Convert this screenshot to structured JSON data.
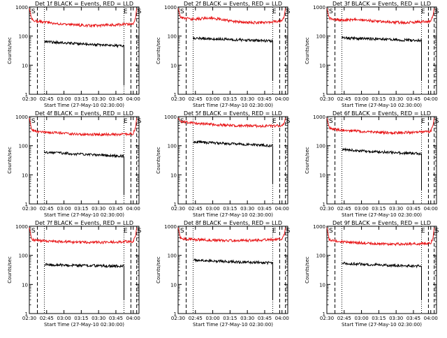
{
  "figure": {
    "xlabel": "Start Time (27-May-10 02:30:00)",
    "ylabel": "Counts/sec"
  },
  "colors": {
    "events": "#000000",
    "lld": "#e8181a",
    "axis": "#000000",
    "background": "#ffffff"
  },
  "chart_data": [
    {
      "type": "line",
      "yscale": "log",
      "ylim": [
        1,
        1000
      ],
      "xlim": [
        "02:30",
        "04:05"
      ],
      "title": "Det 1f BLACK = Events, RED = LLD",
      "x_ticks": [
        "02:30",
        "02:45",
        "03:00",
        "03:15",
        "03:30",
        "03:45",
        "04:00"
      ],
      "y_ticks": [
        "1",
        "10",
        "100",
        "1000"
      ],
      "markers": [
        {
          "label": "S",
          "time": "02:30"
        },
        {
          "label": "E",
          "time": "03:54"
        },
        {
          "label": "S",
          "time": "04:03"
        }
      ],
      "dashed_lines": [
        "02:37",
        "03:58",
        "04:03"
      ],
      "dotted_lines": [
        "02:43",
        "03:52"
      ],
      "series": [
        {
          "role": "lld",
          "x": [
            "02:30",
            "02:32",
            "02:35",
            "02:40",
            "02:45",
            "02:50",
            "03:00",
            "03:10",
            "03:20",
            "03:30",
            "03:40",
            "03:50",
            "03:55",
            "04:00",
            "04:02",
            "04:03"
          ],
          "y": [
            900,
            380,
            330,
            310,
            300,
            280,
            250,
            240,
            230,
            230,
            240,
            250,
            255,
            260,
            400,
            900
          ]
        },
        {
          "role": "events",
          "x": [
            "02:43",
            "02:50",
            "03:00",
            "03:10",
            "03:20",
            "03:30",
            "03:40",
            "03:50",
            "03:52",
            "03:52"
          ],
          "y": [
            65,
            62,
            58,
            55,
            52,
            50,
            48,
            46,
            45,
            2
          ]
        }
      ]
    },
    {
      "type": "line",
      "yscale": "log",
      "ylim": [
        1,
        1000
      ],
      "xlim": [
        "02:30",
        "04:05"
      ],
      "title": "Det 2f BLACK = Events, RED = LLD",
      "x_ticks": [
        "02:30",
        "02:45",
        "03:00",
        "03:15",
        "03:30",
        "03:45",
        "04:00"
      ],
      "y_ticks": [
        "1",
        "10",
        "100",
        "1000"
      ],
      "markers": [
        {
          "label": "S",
          "time": "02:30"
        },
        {
          "label": "E",
          "time": "03:54"
        },
        {
          "label": "S",
          "time": "04:03"
        }
      ],
      "dashed_lines": [
        "02:37",
        "03:58",
        "04:03"
      ],
      "dotted_lines": [
        "02:43",
        "03:52"
      ],
      "series": [
        {
          "role": "lld",
          "x": [
            "02:30",
            "02:32",
            "02:35",
            "02:40",
            "02:45",
            "02:55",
            "03:05",
            "03:15",
            "03:25",
            "03:35",
            "03:45",
            "03:52",
            "04:00",
            "04:02",
            "04:03"
          ],
          "y": [
            900,
            450,
            400,
            390,
            380,
            420,
            390,
            330,
            300,
            290,
            300,
            310,
            330,
            500,
            900
          ]
        },
        {
          "role": "events",
          "x": [
            "02:43",
            "02:50",
            "03:00",
            "03:10",
            "03:20",
            "03:30",
            "03:40",
            "03:50",
            "03:52",
            "03:52"
          ],
          "y": [
            85,
            82,
            80,
            78,
            75,
            72,
            70,
            68,
            66,
            3
          ]
        }
      ]
    },
    {
      "type": "line",
      "yscale": "log",
      "ylim": [
        1,
        1000
      ],
      "xlim": [
        "02:30",
        "04:05"
      ],
      "title": "Det 3f BLACK = Events, RED = LLD",
      "x_ticks": [
        "02:30",
        "02:45",
        "03:00",
        "03:15",
        "03:30",
        "03:45",
        "04:00"
      ],
      "y_ticks": [
        "1",
        "10",
        "100",
        "1000"
      ],
      "markers": [
        {
          "label": "S",
          "time": "02:30"
        },
        {
          "label": "E",
          "time": "03:54"
        },
        {
          "label": "S",
          "time": "04:03"
        }
      ],
      "dashed_lines": [
        "02:37",
        "03:58",
        "04:03"
      ],
      "dotted_lines": [
        "02:43",
        "03:52"
      ],
      "series": [
        {
          "role": "lld",
          "x": [
            "02:30",
            "02:32",
            "02:35",
            "02:40",
            "02:45",
            "02:55",
            "03:05",
            "03:15",
            "03:25",
            "03:35",
            "03:45",
            "03:52",
            "04:00",
            "04:02",
            "04:03"
          ],
          "y": [
            900,
            420,
            380,
            360,
            350,
            370,
            350,
            320,
            300,
            290,
            300,
            310,
            320,
            500,
            900
          ]
        },
        {
          "role": "events",
          "x": [
            "02:43",
            "02:50",
            "03:00",
            "03:10",
            "03:20",
            "03:30",
            "03:40",
            "03:50",
            "03:52",
            "03:52"
          ],
          "y": [
            90,
            85,
            82,
            80,
            78,
            75,
            72,
            70,
            70,
            3
          ]
        }
      ]
    },
    {
      "type": "line",
      "yscale": "log",
      "ylim": [
        1,
        1000
      ],
      "xlim": [
        "02:30",
        "04:05"
      ],
      "title": "Det 4f BLACK = Events, RED = LLD",
      "x_ticks": [
        "02:30",
        "02:45",
        "03:00",
        "03:15",
        "03:30",
        "03:45",
        "04:00"
      ],
      "y_ticks": [
        "1",
        "10",
        "100",
        "1000"
      ],
      "markers": [
        {
          "label": "S",
          "time": "02:30"
        },
        {
          "label": "E",
          "time": "03:54"
        },
        {
          "label": "S",
          "time": "04:03"
        }
      ],
      "dashed_lines": [
        "02:37",
        "03:58",
        "04:03"
      ],
      "dotted_lines": [
        "02:43",
        "03:52"
      ],
      "series": [
        {
          "role": "lld",
          "x": [
            "02:30",
            "02:32",
            "02:35",
            "02:40",
            "02:45",
            "02:55",
            "03:05",
            "03:15",
            "03:25",
            "03:35",
            "03:45",
            "03:52",
            "04:00",
            "04:02",
            "04:03"
          ],
          "y": [
            900,
            350,
            320,
            300,
            290,
            280,
            260,
            250,
            245,
            240,
            245,
            250,
            260,
            400,
            900
          ]
        },
        {
          "role": "events",
          "x": [
            "02:43",
            "02:50",
            "03:00",
            "03:10",
            "03:20",
            "03:30",
            "03:40",
            "03:50",
            "03:52",
            "03:52"
          ],
          "y": [
            60,
            58,
            55,
            52,
            50,
            48,
            46,
            44,
            43,
            2
          ]
        }
      ]
    },
    {
      "type": "line",
      "yscale": "log",
      "ylim": [
        1,
        1000
      ],
      "xlim": [
        "02:30",
        "04:05"
      ],
      "title": "Det 5f BLACK = Events, RED = LLD",
      "x_ticks": [
        "02:30",
        "02:45",
        "03:00",
        "03:15",
        "03:30",
        "03:45",
        "04:00"
      ],
      "y_ticks": [
        "1",
        "10",
        "100",
        "1000"
      ],
      "markers": [
        {
          "label": "S",
          "time": "02:30"
        },
        {
          "label": "E",
          "time": "03:54"
        },
        {
          "label": "S",
          "time": "04:03"
        }
      ],
      "dashed_lines": [
        "02:37",
        "03:58",
        "04:03"
      ],
      "dotted_lines": [
        "02:43",
        "03:52"
      ],
      "series": [
        {
          "role": "lld",
          "x": [
            "02:30",
            "02:32",
            "02:35",
            "02:40",
            "02:45",
            "02:55",
            "03:05",
            "03:15",
            "03:25",
            "03:35",
            "03:45",
            "03:52",
            "04:00",
            "04:02",
            "04:03"
          ],
          "y": [
            900,
            700,
            650,
            620,
            600,
            560,
            520,
            500,
            490,
            480,
            470,
            480,
            490,
            600,
            900
          ]
        },
        {
          "role": "events",
          "x": [
            "02:43",
            "02:50",
            "03:00",
            "03:10",
            "03:20",
            "03:30",
            "03:40",
            "03:50",
            "03:52",
            "03:52"
          ],
          "y": [
            140,
            130,
            125,
            120,
            115,
            110,
            105,
            100,
            98,
            5
          ]
        }
      ]
    },
    {
      "type": "line",
      "yscale": "log",
      "ylim": [
        1,
        1000
      ],
      "xlim": [
        "02:30",
        "04:05"
      ],
      "title": "Det 6f BLACK = Events, RED = LLD",
      "x_ticks": [
        "02:30",
        "02:45",
        "03:00",
        "03:15",
        "03:30",
        "03:45",
        "04:00"
      ],
      "y_ticks": [
        "1",
        "10",
        "100",
        "1000"
      ],
      "markers": [
        {
          "label": "S",
          "time": "02:30"
        },
        {
          "label": "E",
          "time": "03:54"
        },
        {
          "label": "S",
          "time": "04:03"
        }
      ],
      "dashed_lines": [
        "02:37",
        "03:58",
        "04:03"
      ],
      "dotted_lines": [
        "02:43",
        "03:52"
      ],
      "series": [
        {
          "role": "lld",
          "x": [
            "02:30",
            "02:32",
            "02:35",
            "02:40",
            "02:45",
            "02:55",
            "03:05",
            "03:15",
            "03:25",
            "03:35",
            "03:45",
            "03:52",
            "04:00",
            "04:02",
            "04:03"
          ],
          "y": [
            900,
            420,
            380,
            350,
            340,
            320,
            300,
            290,
            280,
            280,
            290,
            300,
            310,
            500,
            900
          ]
        },
        {
          "role": "events",
          "x": [
            "02:43",
            "02:50",
            "03:00",
            "03:10",
            "03:20",
            "03:30",
            "03:40",
            "03:50",
            "03:52",
            "03:52"
          ],
          "y": [
            75,
            70,
            65,
            62,
            60,
            57,
            55,
            53,
            52,
            3
          ]
        }
      ]
    },
    {
      "type": "line",
      "yscale": "log",
      "ylim": [
        1,
        1000
      ],
      "xlim": [
        "02:30",
        "04:05"
      ],
      "title": "Det 7f BLACK = Events, RED = LLD",
      "x_ticks": [
        "02:30",
        "02:45",
        "03:00",
        "03:15",
        "03:30",
        "03:45",
        "04:00"
      ],
      "y_ticks": [
        "1",
        "10",
        "100",
        "1000"
      ],
      "markers": [
        {
          "label": "S",
          "time": "02:30"
        },
        {
          "label": "E",
          "time": "03:54"
        },
        {
          "label": "S",
          "time": "04:03"
        }
      ],
      "dashed_lines": [
        "02:37",
        "03:58",
        "04:03"
      ],
      "dotted_lines": [
        "02:43",
        "03:52"
      ],
      "series": [
        {
          "role": "lld",
          "x": [
            "02:30",
            "02:32",
            "02:35",
            "02:40",
            "02:45",
            "02:55",
            "03:05",
            "03:15",
            "03:25",
            "03:35",
            "03:45",
            "03:52",
            "04:00",
            "04:02",
            "04:03"
          ],
          "y": [
            900,
            360,
            330,
            320,
            310,
            300,
            290,
            280,
            280,
            280,
            290,
            300,
            300,
            450,
            900
          ]
        },
        {
          "role": "events",
          "x": [
            "02:43",
            "02:50",
            "03:00",
            "03:10",
            "03:20",
            "03:30",
            "03:40",
            "03:50",
            "03:52",
            "03:52"
          ],
          "y": [
            48,
            47,
            46,
            45,
            45,
            44,
            43,
            43,
            42,
            3
          ]
        }
      ]
    },
    {
      "type": "line",
      "yscale": "log",
      "ylim": [
        1,
        1000
      ],
      "xlim": [
        "02:30",
        "04:05"
      ],
      "title": "Det 8f BLACK = Events, RED = LLD",
      "x_ticks": [
        "02:30",
        "02:45",
        "03:00",
        "03:15",
        "03:30",
        "03:45",
        "04:00"
      ],
      "y_ticks": [
        "1",
        "10",
        "100",
        "1000"
      ],
      "markers": [
        {
          "label": "S",
          "time": "02:30"
        },
        {
          "label": "E",
          "time": "03:54"
        },
        {
          "label": "S",
          "time": "04:03"
        }
      ],
      "dashed_lines": [
        "02:37",
        "03:58",
        "04:03"
      ],
      "dotted_lines": [
        "02:43",
        "03:52"
      ],
      "series": [
        {
          "role": "lld",
          "x": [
            "02:30",
            "02:32",
            "02:35",
            "02:40",
            "02:45",
            "02:55",
            "03:05",
            "03:15",
            "03:25",
            "03:35",
            "03:45",
            "03:52",
            "04:00",
            "04:02",
            "04:03"
          ],
          "y": [
            900,
            400,
            370,
            360,
            350,
            340,
            330,
            320,
            320,
            330,
            340,
            350,
            360,
            500,
            900
          ]
        },
        {
          "role": "events",
          "x": [
            "02:43",
            "02:50",
            "03:00",
            "03:10",
            "03:20",
            "03:30",
            "03:40",
            "03:50",
            "03:52",
            "03:52"
          ],
          "y": [
            70,
            67,
            65,
            62,
            60,
            58,
            57,
            55,
            55,
            3
          ]
        }
      ]
    },
    {
      "type": "line",
      "yscale": "log",
      "ylim": [
        1,
        1000
      ],
      "xlim": [
        "02:30",
        "04:05"
      ],
      "title": "Det 9f BLACK = Events, RED = LLD",
      "x_ticks": [
        "02:30",
        "02:45",
        "03:00",
        "03:15",
        "03:30",
        "03:45",
        "04:00"
      ],
      "y_ticks": [
        "1",
        "10",
        "100",
        "1000"
      ],
      "markers": [
        {
          "label": "S",
          "time": "02:30"
        },
        {
          "label": "E",
          "time": "03:54"
        },
        {
          "label": "S",
          "time": "04:03"
        }
      ],
      "dashed_lines": [
        "02:37",
        "03:58",
        "04:03"
      ],
      "dotted_lines": [
        "02:43",
        "03:52"
      ],
      "series": [
        {
          "role": "lld",
          "x": [
            "02:30",
            "02:32",
            "02:35",
            "02:40",
            "02:45",
            "02:55",
            "03:05",
            "03:15",
            "03:25",
            "03:35",
            "03:45",
            "03:52",
            "04:00",
            "04:02",
            "04:03"
          ],
          "y": [
            900,
            350,
            320,
            300,
            290,
            270,
            260,
            250,
            245,
            245,
            250,
            255,
            260,
            400,
            900
          ]
        },
        {
          "role": "events",
          "x": [
            "02:43",
            "02:50",
            "03:00",
            "03:10",
            "03:20",
            "03:30",
            "03:40",
            "03:50",
            "03:52",
            "03:52"
          ],
          "y": [
            55,
            52,
            50,
            48,
            46,
            45,
            44,
            43,
            42,
            3
          ]
        }
      ]
    }
  ]
}
